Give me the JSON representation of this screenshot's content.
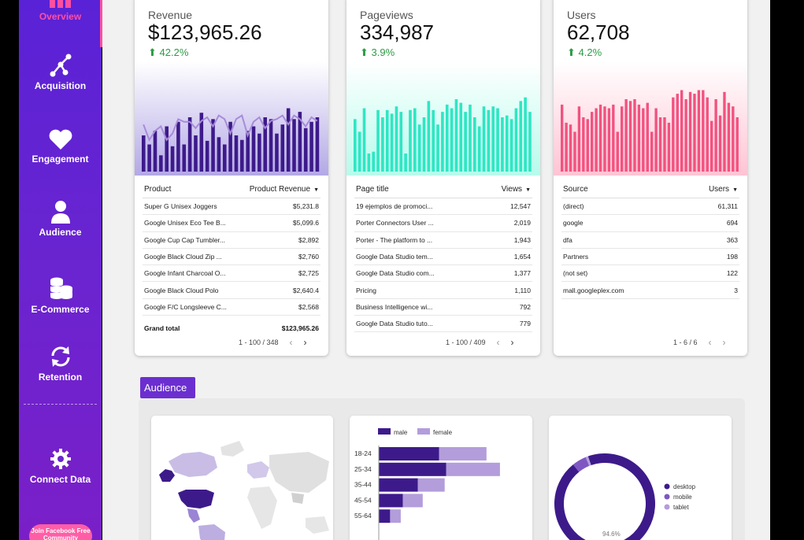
{
  "sidebar": {
    "items": [
      {
        "label": "Overview",
        "icon": "bar-chart-icon"
      },
      {
        "label": "Acquisition",
        "icon": "network-icon"
      },
      {
        "label": "Engagement",
        "icon": "heart-icon"
      },
      {
        "label": "Audience",
        "icon": "person-icon"
      },
      {
        "label": "E-Commerce",
        "icon": "coins-icon"
      },
      {
        "label": "Retention",
        "icon": "refresh-icon"
      },
      {
        "label": "Connect Data",
        "icon": "gear-icon"
      }
    ],
    "community_button": "Join Facebook Free Community",
    "active_color": "#ff4fa3"
  },
  "cards": [
    {
      "title": "Revenue",
      "value": "$123,965.26",
      "delta": "42.2%",
      "delta_color": "#2e9c46",
      "accent": "#3d1a8a",
      "table": {
        "col1": "Product",
        "col2": "Product Revenue",
        "rows": [
          [
            "Super G Unisex Joggers",
            "$5,231.8"
          ],
          [
            "Google Unisex Eco Tee B...",
            "$5,099.6"
          ],
          [
            "Google Cup Cap Tumbler...",
            "$2,892"
          ],
          [
            "Google Black Cloud Zip ...",
            "$2,760"
          ],
          [
            "Google Infant Charcoal O...",
            "$2,725"
          ],
          [
            "Google Black Cloud Polo",
            "$2,640.4"
          ],
          [
            "Google F/C Longsleeve C...",
            "$2,568"
          ]
        ],
        "total_label": "Grand total",
        "total_value": "$123,965.26",
        "pager": "1 - 100 / 348"
      }
    },
    {
      "title": "Pageviews",
      "value": "334,987",
      "delta": "3.9%",
      "delta_color": "#2e9c46",
      "accent": "#2fe6c4",
      "table": {
        "col1": "Page title",
        "col2": "Views",
        "rows": [
          [
            "19 ejemplos de promoci...",
            "12,547"
          ],
          [
            "Porter Connectors User ...",
            "2,019"
          ],
          [
            "Porter - The platform to ...",
            "1,943"
          ],
          [
            "Google Data Studio tem...",
            "1,654"
          ],
          [
            "Google Data Studio com...",
            "1,377"
          ],
          [
            "Pricing",
            "1,110"
          ],
          [
            "Business Intelligence wi...",
            "792"
          ],
          [
            "Google Data Studio tuto...",
            "779"
          ]
        ],
        "pager": "1 - 100 / 409"
      }
    },
    {
      "title": "Users",
      "value": "62,708",
      "delta": "4.2%",
      "delta_color": "#2e9c46",
      "accent": "#f2527f",
      "table": {
        "col1": "Source",
        "col2": "Users",
        "rows": [
          [
            "(direct)",
            "61,311"
          ],
          [
            "google",
            "694"
          ],
          [
            "dfa",
            "363"
          ],
          [
            "Partners",
            "198"
          ],
          [
            "(not set)",
            "122"
          ],
          [
            "mall.googleplex.com",
            "3"
          ]
        ],
        "pager": "1 - 6 / 6"
      }
    }
  ],
  "audience": {
    "tab_label": "Audience",
    "age_chart": {
      "legend": [
        "male",
        "female"
      ],
      "colors": [
        "#3d1a8a",
        "#b39ddb"
      ],
      "categories": [
        "18-24",
        "25-34",
        "35-44",
        "45-54",
        "55-64"
      ],
      "male": [
        85,
        95,
        55,
        34,
        16
      ],
      "female": [
        67,
        76,
        38,
        28,
        15
      ]
    },
    "device_chart": {
      "legend": [
        "desktop",
        "mobile",
        "tablet"
      ],
      "colors": [
        "#3d1a8a",
        "#7e57c2",
        "#b39ddb"
      ],
      "values": [
        94.6,
        4.6,
        0.8
      ],
      "label": "94.6%"
    }
  },
  "chart_data": [
    {
      "type": "bar",
      "title": "Revenue",
      "values": [
        40,
        30,
        45,
        18,
        50,
        28,
        55,
        30,
        60,
        40,
        65,
        34,
        58,
        38,
        30,
        55,
        40,
        35,
        45,
        50,
        42,
        60,
        58,
        42,
        52,
        70,
        58,
        66,
        48,
        55,
        60
      ],
      "line": [
        52,
        35,
        45,
        50,
        35,
        42,
        58,
        55,
        55,
        48,
        56,
        60,
        50,
        62,
        58,
        42,
        58,
        62,
        40,
        55,
        60,
        48,
        56,
        58,
        62,
        52,
        62,
        58,
        50,
        60,
        56
      ]
    },
    {
      "type": "bar",
      "title": "Pageviews",
      "values": [
        58,
        44,
        70,
        20,
        22,
        68,
        60,
        68,
        64,
        72,
        66,
        20,
        68,
        70,
        52,
        60,
        78,
        68,
        52,
        66,
        74,
        70,
        80,
        76,
        66,
        74,
        60,
        50,
        72,
        68,
        72,
        70,
        60,
        62,
        58,
        70,
        78,
        82,
        66
      ]
    },
    {
      "type": "bar",
      "title": "Users",
      "values": [
        74,
        54,
        52,
        44,
        72,
        60,
        58,
        66,
        70,
        74,
        72,
        70,
        74,
        44,
        72,
        80,
        78,
        80,
        74,
        70,
        76,
        44,
        70,
        60,
        60,
        54,
        82,
        86,
        90,
        80,
        88,
        86,
        90,
        90,
        82,
        56,
        80,
        62,
        88,
        76,
        72,
        60
      ]
    },
    {
      "type": "bar",
      "title": "",
      "categories": [
        "18-24",
        "25-34",
        "35-44",
        "45-54",
        "55-64"
      ],
      "series": [
        {
          "name": "male",
          "values": [
            85,
            95,
            55,
            34,
            16
          ]
        },
        {
          "name": "female",
          "values": [
            67,
            76,
            38,
            28,
            15
          ]
        }
      ]
    },
    {
      "type": "pie",
      "title": "",
      "categories": [
        "desktop",
        "mobile",
        "tablet"
      ],
      "values": [
        94.6,
        4.6,
        0.8
      ]
    }
  ]
}
